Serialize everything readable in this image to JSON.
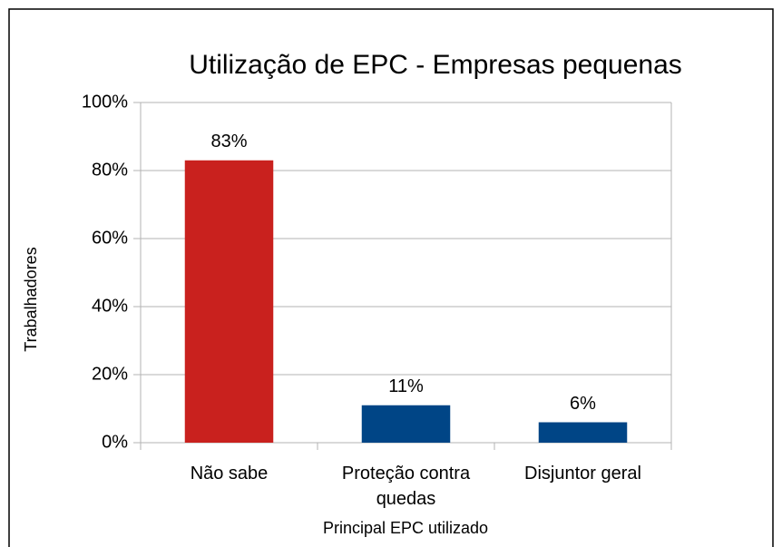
{
  "chart_data": {
    "type": "bar",
    "title": "Utilização de EPC - Empresas pequenas",
    "x_label": "Principal EPC utilizado",
    "y_label": "Trabalhadores",
    "categories": [
      "Não sabe",
      "Proteção contra quedas",
      "Disjuntor geral"
    ],
    "values": [
      83,
      11,
      6
    ],
    "value_labels": [
      "83%",
      "11%",
      "6%"
    ],
    "colors": [
      "#c9211e",
      "#004586",
      "#004586"
    ],
    "ylim": [
      0,
      100
    ],
    "yticks": [
      {
        "value": 0,
        "label": "0%"
      },
      {
        "value": 20,
        "label": "20%"
      },
      {
        "value": 40,
        "label": "40%"
      },
      {
        "value": 60,
        "label": "60%"
      },
      {
        "value": 80,
        "label": "80%"
      },
      {
        "value": 100,
        "label": "100%"
      }
    ],
    "grid": true
  }
}
